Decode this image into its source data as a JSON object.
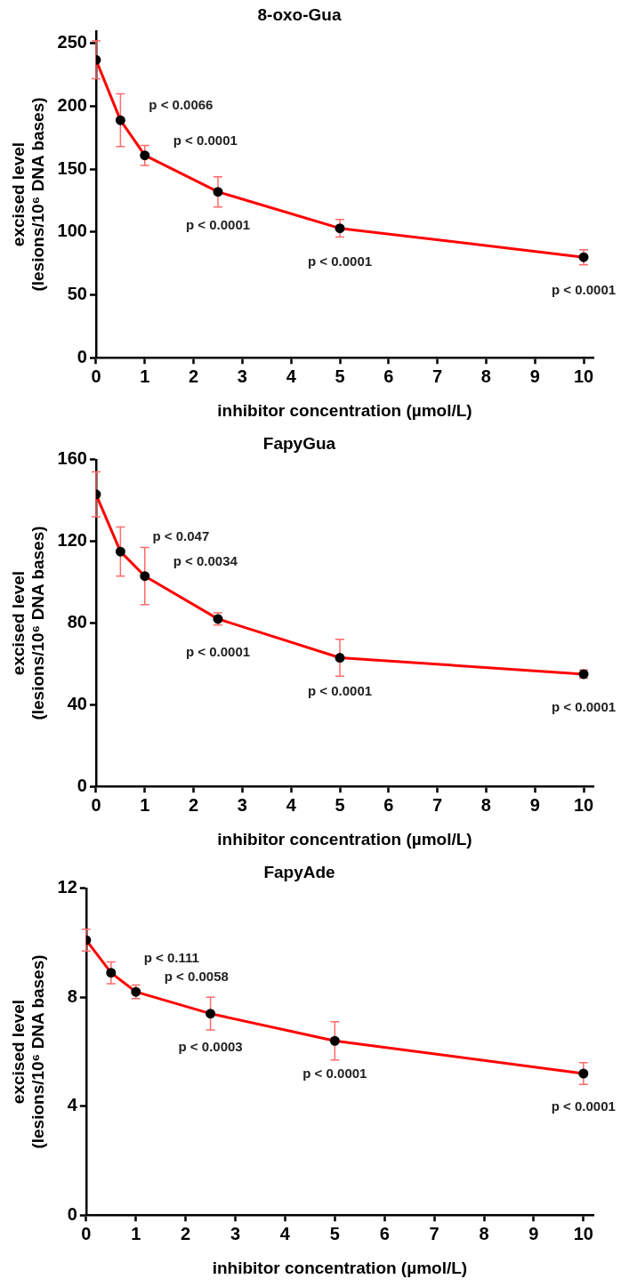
{
  "chart_data": [
    {
      "type": "line",
      "title": "8-oxo-Gua",
      "xlabel": "inhibitor concentration (µmol/L)",
      "ylabel": "excised level\n(lesions/10⁶ DNA bases)",
      "x": [
        0,
        0.5,
        1,
        2.5,
        5,
        10
      ],
      "series": [
        {
          "color": "#ff0000",
          "values": [
            237,
            189,
            161,
            132,
            103,
            80
          ],
          "errors": [
            15,
            21,
            8,
            12,
            7,
            6
          ]
        }
      ],
      "xlim": [
        0,
        10.2
      ],
      "xticks": [
        0,
        1,
        2,
        3,
        4,
        5,
        6,
        7,
        8,
        9,
        10
      ],
      "ylim": [
        0,
        260
      ],
      "yticks": [
        0,
        50,
        100,
        150,
        200,
        250
      ],
      "grid": false,
      "legend": false,
      "marker": "circle",
      "line_style": "solid",
      "annotations": [
        "p < 0.0066",
        "p < 0.0001",
        "p < 0.0001",
        "p < 0.0001",
        "p < 0.0001"
      ]
    },
    {
      "type": "line",
      "title": "FapyGua",
      "xlabel": "inhibitor concentration (µmol/L)",
      "ylabel": "excised level\n(lesions/10⁶ DNA bases)",
      "x": [
        0,
        0.5,
        1,
        2.5,
        5,
        10
      ],
      "series": [
        {
          "color": "#ff0000",
          "values": [
            143,
            115,
            103,
            82,
            63,
            55
          ],
          "errors": [
            11,
            12,
            14,
            3,
            9,
            2
          ]
        }
      ],
      "xlim": [
        0,
        10.2
      ],
      "xticks": [
        0,
        1,
        2,
        3,
        4,
        5,
        6,
        7,
        8,
        9,
        10
      ],
      "ylim": [
        0,
        160
      ],
      "yticks": [
        0,
        40,
        80,
        120,
        160
      ],
      "grid": false,
      "legend": false,
      "marker": "circle",
      "line_style": "solid",
      "annotations": [
        "p < 0.047",
        "p < 0.0034",
        "p < 0.0001",
        "p < 0.0001",
        "p < 0.0001"
      ]
    },
    {
      "type": "line",
      "title": "FapyAde",
      "xlabel": "inhibitor concentration (µmol/L)",
      "ylabel": "excised level\n(lesions/10⁶ DNA bases)",
      "x": [
        0,
        0.5,
        1,
        2.5,
        5,
        10
      ],
      "series": [
        {
          "color": "#ff0000",
          "values": [
            10.1,
            8.9,
            8.2,
            7.4,
            6.4,
            5.2
          ],
          "errors": [
            0.4,
            0.4,
            0.25,
            0.6,
            0.7,
            0.4
          ]
        }
      ],
      "xlim": [
        0,
        10.2
      ],
      "xticks": [
        0,
        1,
        2,
        3,
        4,
        5,
        6,
        7,
        8,
        9,
        10
      ],
      "ylim": [
        0,
        12
      ],
      "yticks": [
        0,
        4,
        8,
        12
      ],
      "grid": false,
      "legend": false,
      "marker": "circle",
      "line_style": "solid",
      "annotations": [
        "p < 0.111",
        "p < 0.0058",
        "p < 0.0003",
        "p < 0.0001",
        "p < 0.0001"
      ]
    }
  ]
}
